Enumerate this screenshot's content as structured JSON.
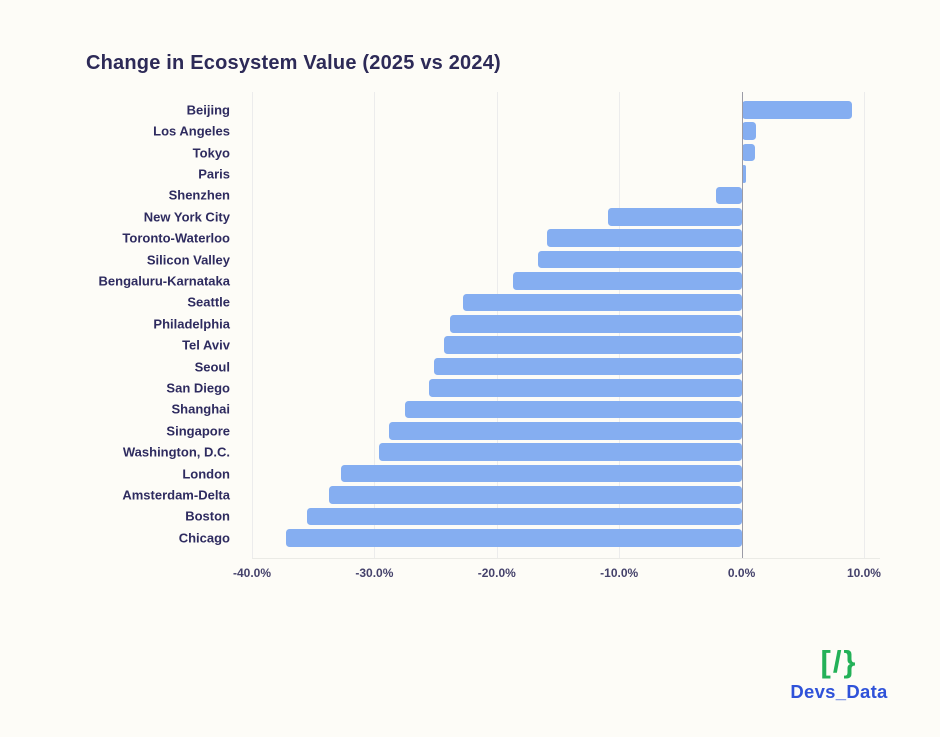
{
  "page": {
    "background": "#fdfcf7"
  },
  "chart": {
    "title": "Change in Ecosystem Value (2025 vs 2024)"
  },
  "chart_data": {
    "type": "bar",
    "orientation": "horizontal",
    "title": "Change in Ecosystem Value (2025 vs 2024)",
    "categories": [
      "Beijing",
      "Los Angeles",
      "Tokyo",
      "Paris",
      "Shenzhen",
      "New York City",
      "Toronto-Waterloo",
      "Silicon Valley",
      "Bengaluru-Karnataka",
      "Seattle",
      "Philadelphia",
      "Tel Aviv",
      "Seoul",
      "San Diego",
      "Shanghai",
      "Singapore",
      "Washington, D.C.",
      "London",
      "Amsterdam-Delta",
      "Boston",
      "Chicago"
    ],
    "values": [
      9.0,
      1.2,
      1.1,
      0.4,
      -2.1,
      -10.9,
      -15.9,
      -16.6,
      -18.7,
      -22.8,
      -23.8,
      -24.3,
      -25.1,
      -25.5,
      -27.5,
      -28.8,
      -29.6,
      -32.7,
      -33.7,
      -35.5,
      -37.2
    ],
    "value_unit": "%",
    "xlabel": "",
    "ylabel": "",
    "xlim": [
      -40,
      11.31
    ],
    "x_ticks": [
      "-40.0%",
      "-30.0%",
      "-20.0%",
      "-10.0%",
      "0.0%",
      "10.0%"
    ],
    "x_tick_values": [
      -40,
      -30,
      -20,
      -10,
      0,
      10
    ],
    "grid": "vertical-gridlines-on",
    "legend": "none",
    "bar_color": "#85aef1"
  },
  "colors": {
    "title_text": "#2d2a57",
    "category_label_text": "#2e2b5f",
    "tick_label_text": "#45426b",
    "bar": "#85aef1",
    "zero_line": "#9b9ba6",
    "gridline": "#ececec",
    "logo_icon_green": "#23b158",
    "logo_text_blue": "#2f52d9"
  },
  "logo": {
    "icon": "[/}",
    "text": "Devs_Data"
  }
}
